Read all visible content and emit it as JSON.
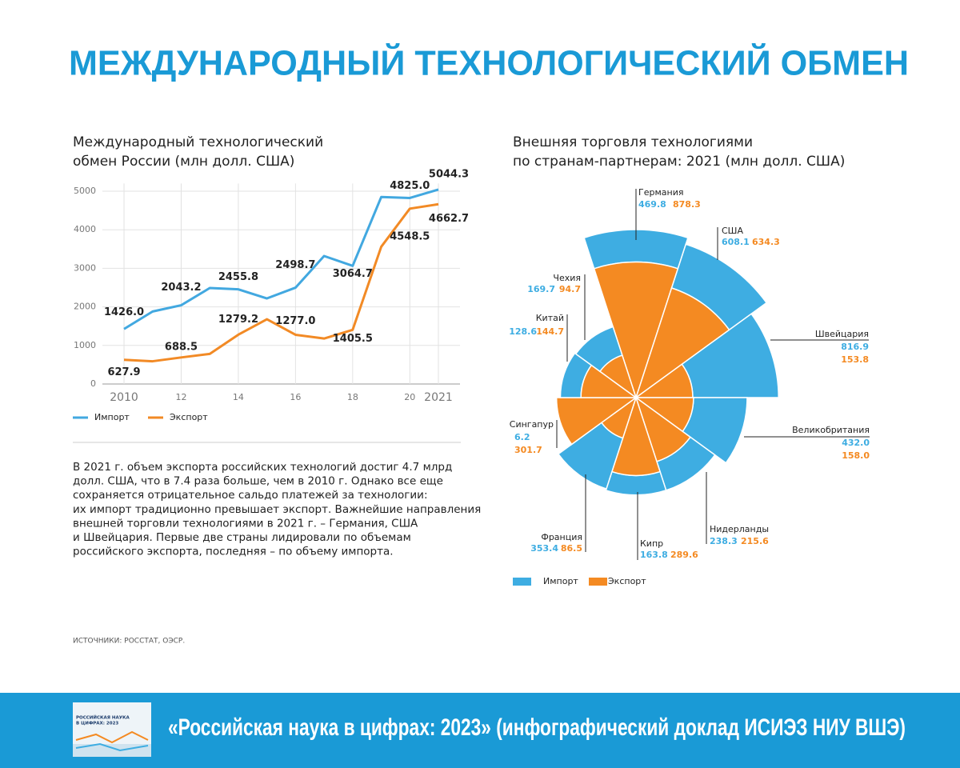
{
  "title": "МЕЖДУНАРОДНЫЙ ТЕХНОЛОГИЧЕСКИЙ ОБМЕН",
  "chart_data": [
    {
      "type": "line",
      "title": [
        "Международный технологический",
        "обмен России (млн долл. США)"
      ],
      "x": [
        2010,
        2011,
        2012,
        2013,
        2014,
        2015,
        2016,
        2017,
        2018,
        2019,
        2020,
        2021
      ],
      "xlim": [
        2009,
        2021.75
      ],
      "xticks": [
        2010,
        {
          "value": 2012,
          "label": "12"
        },
        {
          "value": 2014,
          "label": "14"
        },
        {
          "value": 2016,
          "label": "16"
        },
        {
          "value": 2018,
          "label": "18"
        },
        {
          "value": 2020,
          "label": "20"
        },
        2021
      ],
      "ylim": [
        0,
        5200
      ],
      "yticks": [
        0,
        1000,
        2000,
        3000,
        4000,
        5000
      ],
      "grid": true,
      "series": [
        {
          "name": "Импорт",
          "color": "#42a8e0",
          "values": [
            1426.0,
            1880,
            2043.2,
            2490,
            2455.8,
            2220,
            2498.7,
            3320,
            3064.7,
            4850,
            4825.0,
            5044.3
          ],
          "value_labels": [
            "1426.0",
            null,
            "2043.2",
            null,
            "2455.8",
            null,
            "2498.7",
            null,
            "3064.7",
            null,
            "4825.0",
            "5044.3"
          ]
        },
        {
          "name": "Экспорт",
          "color": "#f28a25",
          "values": [
            627.9,
            590,
            688.5,
            780,
            1279.2,
            1680,
            1277.0,
            1180,
            1405.5,
            3560,
            4548.5,
            4662.7
          ],
          "value_labels": [
            "627.9",
            null,
            "688.5",
            null,
            "1279.2",
            null,
            "1277.0",
            null,
            "1405.5",
            null,
            "4548.5",
            "4662.7"
          ]
        }
      ]
    },
    {
      "type": "rose",
      "title": [
        "Внешняя торговля технологиями",
        "по странам-партнерам: 2021 (млн долл. США)"
      ],
      "categories": [
        "Германия",
        "США",
        "Швейцария",
        "Великобритания",
        "Нидерланды",
        "Кипр",
        "Франция",
        "Сингапур",
        "Китай",
        "Чехия"
      ],
      "series": [
        {
          "name": "Импорт",
          "color": "#3eade2",
          "values": [
            469.8,
            608.1,
            816.9,
            432.0,
            238.3,
            163.8,
            353.4,
            6.2,
            128.6,
            169.7
          ],
          "value_labels": [
            "469.8",
            "608.1",
            "816.9",
            "432.0",
            "238.3",
            "163.8",
            "353.4",
            "6.2",
            "128.6",
            "169.7"
          ]
        },
        {
          "name": "Экспорт",
          "color": "#f48a22",
          "values": [
            878.3,
            634.3,
            153.8,
            158.0,
            215.6,
            289.6,
            86.5,
            301.7,
            144.7,
            94.7
          ],
          "value_labels": [
            "878.3",
            "634.3",
            "153.8",
            "158.0",
            "215.6",
            "289.6",
            "86.5",
            "301.7",
            "144.7",
            "94.7"
          ]
        }
      ]
    }
  ],
  "text": [
    "В 2021 г. объем экспорта российских технологий достиг 4.7 млрд",
    "долл. США, что в 7.4 раза больше, чем в 2010 г. Однако все еще",
    "сохраняется отрицательное сальдо платежей за технологии:",
    "их импорт традиционно превышает экспорт. Важнейшие направления",
    "внешней торговли технологиями в 2021 г. – Германия, США",
    "и Швейцария. Первые две страны лидировали по объемам",
    "российского экспорта, последняя – по объему импорта."
  ],
  "sources": "ИСТОЧНИКИ: РОССТАТ, ОЭСР.",
  "footer": {
    "thumbnail": [
      "РОССИЙСКАЯ НАУКА",
      "В ЦИФРАХ: 2023"
    ],
    "text": "«Российская наука в цифрах: 2023» (инфографический доклад ИСИЭЗ НИУ ВШЭ)"
  }
}
